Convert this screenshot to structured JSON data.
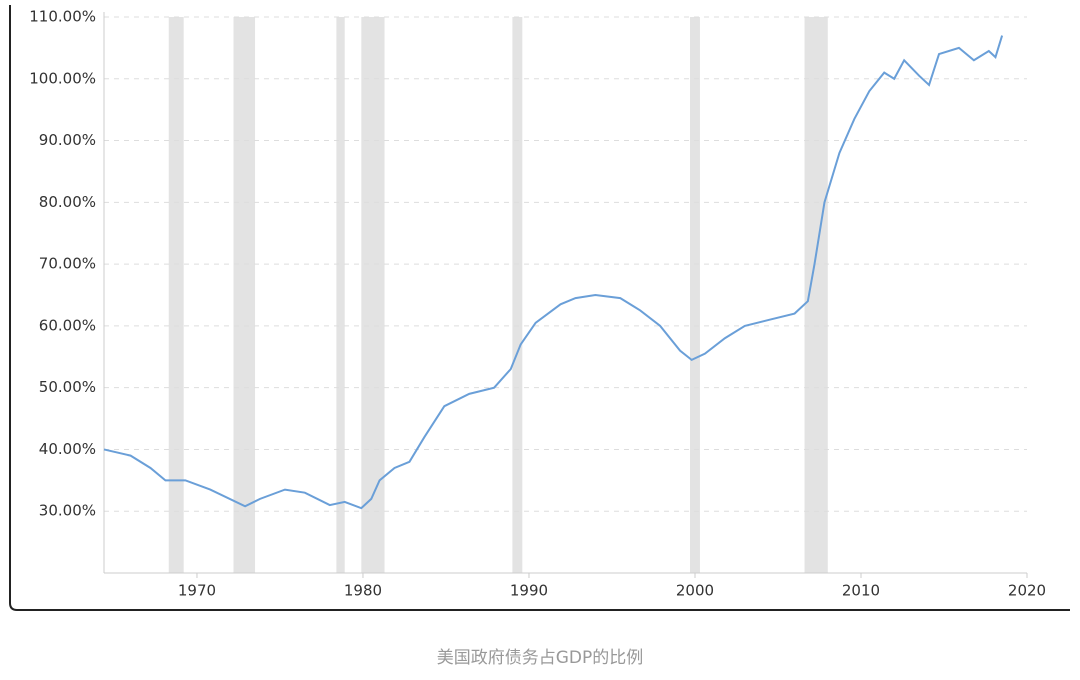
{
  "chart_data": {
    "type": "line",
    "x": [
      1964.4,
      1966.0,
      1967.2,
      1968.1,
      1969.3,
      1970.8,
      1972.9,
      1973.8,
      1975.3,
      1976.5,
      1978.0,
      1978.9,
      1979.9,
      1980.5,
      1981.0,
      1981.9,
      1982.8,
      1983.7,
      1984.9,
      1986.4,
      1987.9,
      1988.9,
      1989.5,
      1990.4,
      1991.9,
      1992.8,
      1994.0,
      1995.5,
      1996.7,
      1997.9,
      1999.1,
      1999.8,
      2000.6,
      2001.8,
      2003.0,
      2004.5,
      2006.0,
      2006.8,
      2007.2,
      2007.8,
      2008.7,
      2009.6,
      2010.5,
      2011.4,
      2012.0,
      2012.6,
      2013.5,
      2014.1,
      2014.7,
      2015.9,
      2016.8,
      2017.7,
      2018.1,
      2018.5
    ],
    "values": [
      40,
      39,
      37,
      35,
      35,
      33.5,
      30.8,
      32,
      33.5,
      33,
      31,
      31.5,
      30.5,
      32,
      35,
      37,
      38,
      42,
      47,
      49,
      50,
      53,
      57,
      60.5,
      63.5,
      64.5,
      65,
      64.5,
      62.5,
      60,
      56,
      54.5,
      55.5,
      58,
      60,
      61,
      62,
      64,
      70,
      80,
      88,
      93.5,
      98,
      101,
      100,
      103,
      100.5,
      99,
      104,
      105,
      103,
      104.5,
      103.5,
      107
    ],
    "color": "#6a9fd8",
    "shaded_periods": [
      [
        1968.3,
        1969.2
      ],
      [
        1972.2,
        1973.5
      ],
      [
        1978.4,
        1978.9
      ],
      [
        1979.9,
        1981.3
      ],
      [
        1989.0,
        1989.6
      ],
      [
        1999.7,
        2000.3
      ],
      [
        2006.6,
        2008.0
      ]
    ],
    "shade_color": "#e3e3e3",
    "xlim": [
      1964.4,
      2020
    ],
    "xticks": [
      1970,
      1980,
      1990,
      2000,
      2010,
      2020
    ],
    "ylim": [
      20,
      110
    ],
    "yticks": [
      {
        "value": 30,
        "label": "30.00%"
      },
      {
        "value": 40,
        "label": "40.00%"
      },
      {
        "value": 50,
        "label": "50.00%"
      },
      {
        "value": 60,
        "label": "60.00%"
      },
      {
        "value": 70,
        "label": "70.00%"
      },
      {
        "value": 80,
        "label": "80.00%"
      },
      {
        "value": 90,
        "label": "90.00%"
      },
      {
        "value": 100,
        "label": "100.00%"
      },
      {
        "value": 110,
        "label": "110.00%"
      }
    ],
    "grid": true
  },
  "caption": "美国政府债务占GDP的比例"
}
